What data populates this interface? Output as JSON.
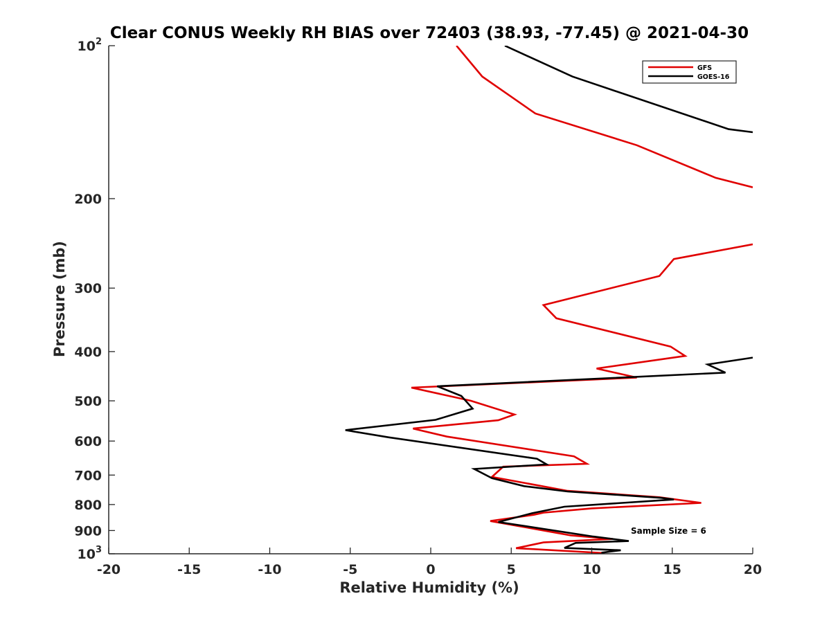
{
  "chart_data": {
    "type": "line",
    "title": "Clear CONUS Weekly RH BIAS over 72403 (38.93, -77.45) @ 2021-04-30",
    "xlabel": "Relative Humidity (%)",
    "ylabel": "Pressure (mb)",
    "xlim": [
      -20,
      20
    ],
    "ylim": [
      100,
      1000
    ],
    "y_scale": "log",
    "y_reversed": true,
    "grid": false,
    "legend_position": "top-right",
    "x_ticks": [
      "-20",
      "-15",
      "-10",
      "-5",
      "0",
      "5",
      "10",
      "15",
      "20"
    ],
    "y_ticks": [
      {
        "value": 100,
        "base": "10",
        "exp": "2"
      },
      {
        "value": 200,
        "label": "200"
      },
      {
        "value": 300,
        "label": "300"
      },
      {
        "value": 400,
        "label": "400"
      },
      {
        "value": 500,
        "label": "500"
      },
      {
        "value": 600,
        "label": "600"
      },
      {
        "value": 700,
        "label": "700"
      },
      {
        "value": 800,
        "label": "800"
      },
      {
        "value": 900,
        "label": "900"
      },
      {
        "value": 1000,
        "base": "10",
        "exp": "3"
      }
    ],
    "annotation": "Sample Size = 6",
    "series": [
      {
        "name": "GFS",
        "color": "#e00000",
        "segments": [
          [
            [
              1.6,
              100
            ],
            [
              3.2,
              115
            ],
            [
              6.5,
              136
            ],
            [
              12.8,
              157
            ],
            [
              17.7,
              182
            ],
            [
              20.0,
              190
            ]
          ],
          [
            [
              20.0,
              246
            ],
            [
              15.1,
              263
            ],
            [
              14.2,
              284
            ],
            [
              7.0,
              324
            ],
            [
              7.8,
              344
            ],
            [
              14.9,
              391
            ],
            [
              15.8,
              408
            ],
            [
              10.3,
              432
            ],
            [
              12.8,
              450
            ],
            [
              -1.2,
              471
            ],
            [
              2.5,
              500
            ],
            [
              5.2,
              532
            ],
            [
              4.2,
              546
            ],
            [
              -1.1,
              567
            ],
            [
              1.0,
              588
            ],
            [
              8.9,
              643
            ],
            [
              9.7,
              665
            ],
            [
              4.5,
              674
            ],
            [
              3.8,
              706
            ],
            [
              8.5,
              752
            ],
            [
              14.2,
              774
            ],
            [
              16.8,
              794
            ],
            [
              10.0,
              814
            ],
            [
              7.0,
              830
            ],
            [
              6.4,
              838
            ],
            [
              3.7,
              862
            ],
            [
              8.7,
              920
            ],
            [
              11.3,
              935
            ],
            [
              7.0,
              950
            ],
            [
              5.3,
              975
            ],
            [
              10.8,
              997
            ]
          ]
        ]
      },
      {
        "name": "GOES-16",
        "color": "#000000",
        "segments": [
          [
            [
              4.6,
              100
            ],
            [
              8.8,
              115
            ],
            [
              18.5,
              146
            ],
            [
              20.0,
              148
            ]
          ],
          [
            [
              20.0,
              411
            ],
            [
              17.2,
              424
            ],
            [
              18.3,
              440
            ],
            [
              0.4,
              468
            ],
            [
              1.9,
              489
            ],
            [
              2.6,
              518
            ],
            [
              0.3,
              545
            ],
            [
              -5.3,
              571
            ],
            [
              -2.6,
              590
            ],
            [
              6.6,
              650
            ],
            [
              7.2,
              667
            ],
            [
              2.7,
              681
            ],
            [
              3.8,
              710
            ],
            [
              5.8,
              736
            ],
            [
              8.5,
              754
            ],
            [
              14.3,
              776
            ],
            [
              15.1,
              782
            ],
            [
              8.3,
              808
            ],
            [
              6.3,
              832
            ],
            [
              4.2,
              866
            ],
            [
              10.1,
              925
            ],
            [
              12.3,
              944
            ],
            [
              9.0,
              952
            ],
            [
              8.3,
              974
            ],
            [
              11.8,
              984
            ],
            [
              10.6,
              995
            ]
          ]
        ]
      }
    ]
  }
}
